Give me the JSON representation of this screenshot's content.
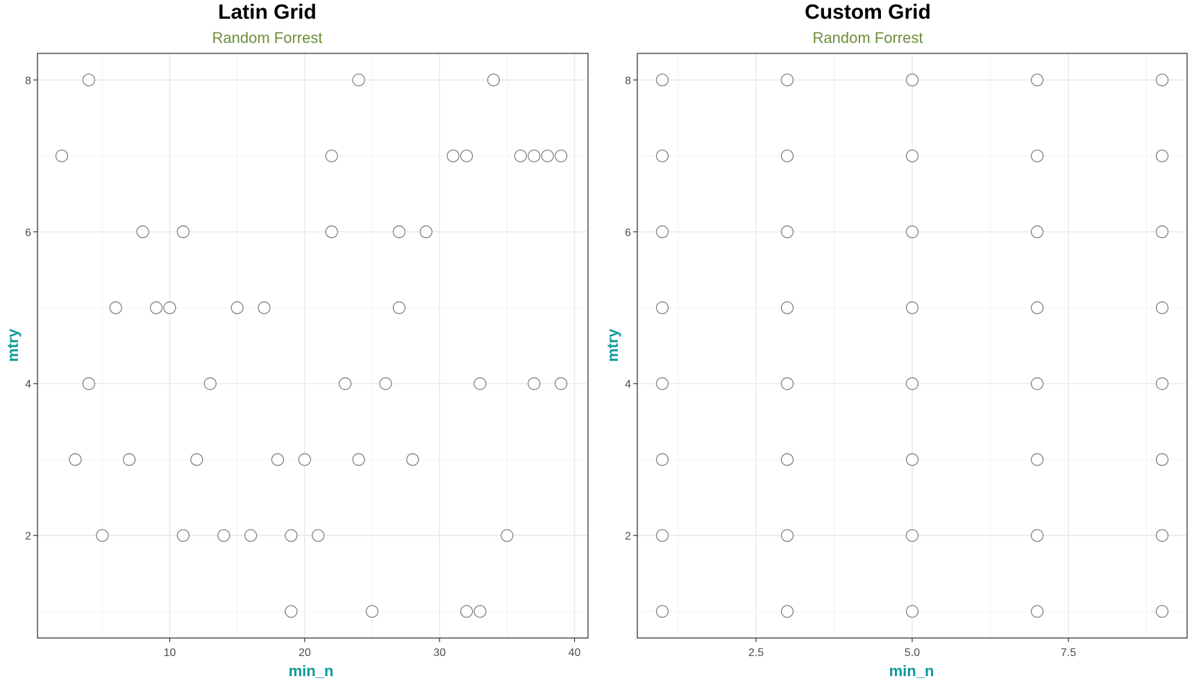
{
  "chart_data": [
    {
      "type": "scatter",
      "title": "Latin Grid",
      "subtitle": "Random Forrest",
      "xlabel": "min_n",
      "ylabel": "mtry",
      "xlim": [
        0.2,
        41
      ],
      "ylim": [
        0.65,
        8.35
      ],
      "x_ticks": [
        10,
        20,
        30,
        40
      ],
      "x_tick_labels": [
        "10",
        "20",
        "30",
        "40"
      ],
      "x_minor": [
        5,
        15,
        25,
        35
      ],
      "y_ticks": [
        2,
        4,
        6,
        8
      ],
      "y_tick_labels": [
        "2",
        "4",
        "6",
        "8"
      ],
      "y_minor": [
        1,
        3,
        5,
        7
      ],
      "grid": true,
      "points": [
        {
          "x": 4,
          "y": 8
        },
        {
          "x": 24,
          "y": 8
        },
        {
          "x": 34,
          "y": 8
        },
        {
          "x": 2,
          "y": 7
        },
        {
          "x": 22,
          "y": 7
        },
        {
          "x": 31,
          "y": 7
        },
        {
          "x": 32,
          "y": 7
        },
        {
          "x": 36,
          "y": 7
        },
        {
          "x": 37,
          "y": 7
        },
        {
          "x": 38,
          "y": 7
        },
        {
          "x": 39,
          "y": 7
        },
        {
          "x": 8,
          "y": 6
        },
        {
          "x": 11,
          "y": 6
        },
        {
          "x": 22,
          "y": 6
        },
        {
          "x": 27,
          "y": 6
        },
        {
          "x": 29,
          "y": 6
        },
        {
          "x": 6,
          "y": 5
        },
        {
          "x": 9,
          "y": 5
        },
        {
          "x": 10,
          "y": 5
        },
        {
          "x": 15,
          "y": 5
        },
        {
          "x": 17,
          "y": 5
        },
        {
          "x": 27,
          "y": 5
        },
        {
          "x": 4,
          "y": 4
        },
        {
          "x": 13,
          "y": 4
        },
        {
          "x": 23,
          "y": 4
        },
        {
          "x": 26,
          "y": 4
        },
        {
          "x": 33,
          "y": 4
        },
        {
          "x": 37,
          "y": 4
        },
        {
          "x": 39,
          "y": 4
        },
        {
          "x": 3,
          "y": 3
        },
        {
          "x": 7,
          "y": 3
        },
        {
          "x": 12,
          "y": 3
        },
        {
          "x": 18,
          "y": 3
        },
        {
          "x": 20,
          "y": 3
        },
        {
          "x": 24,
          "y": 3
        },
        {
          "x": 28,
          "y": 3
        },
        {
          "x": 5,
          "y": 2
        },
        {
          "x": 11,
          "y": 2
        },
        {
          "x": 14,
          "y": 2
        },
        {
          "x": 16,
          "y": 2
        },
        {
          "x": 19,
          "y": 2
        },
        {
          "x": 21,
          "y": 2
        },
        {
          "x": 35,
          "y": 2
        },
        {
          "x": 19,
          "y": 1
        },
        {
          "x": 25,
          "y": 1
        },
        {
          "x": 32,
          "y": 1
        },
        {
          "x": 33,
          "y": 1
        }
      ]
    },
    {
      "type": "scatter",
      "title": "Custom Grid",
      "subtitle": "Random Forrest",
      "xlabel": "min_n",
      "ylabel": "mtry",
      "xlim": [
        0.6,
        9.4
      ],
      "ylim": [
        0.65,
        8.35
      ],
      "x_ticks": [
        2.5,
        5.0,
        7.5
      ],
      "x_tick_labels": [
        "2.5",
        "5.0",
        "7.5"
      ],
      "x_minor": [
        1.25,
        3.75,
        6.25,
        8.75
      ],
      "y_ticks": [
        2,
        4,
        6,
        8
      ],
      "y_tick_labels": [
        "2",
        "4",
        "6",
        "8"
      ],
      "y_minor": [
        1,
        3,
        5,
        7
      ],
      "grid": true,
      "grid_x_values": [
        1,
        3,
        5,
        7,
        9
      ],
      "grid_y_values": [
        1,
        2,
        3,
        4,
        5,
        6,
        7,
        8
      ]
    }
  ]
}
